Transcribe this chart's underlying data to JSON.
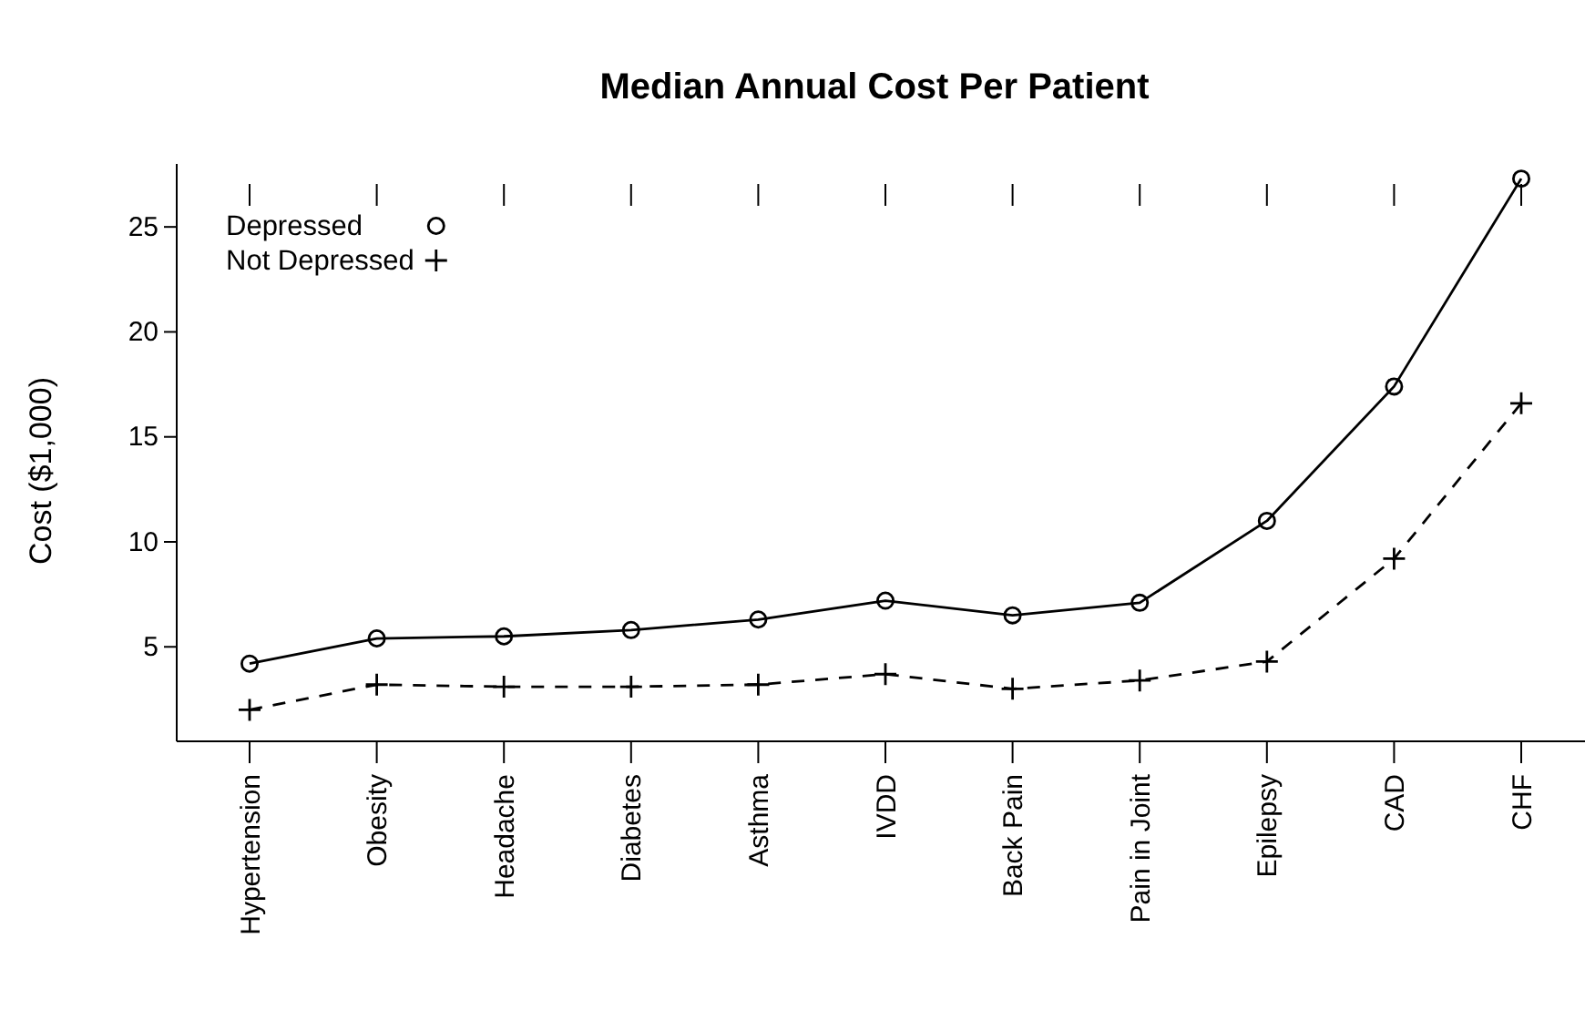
{
  "chart_data": {
    "type": "line",
    "title": "Median Annual Cost Per Patient",
    "ylabel": "Cost ($1,000)",
    "categories": [
      "Hypertension",
      "Obesity",
      "Headache",
      "Diabetes",
      "Asthma",
      "IVDD",
      "Back Pain",
      "Pain in Joint",
      "Epilepsy",
      "CAD",
      "CHF"
    ],
    "series": [
      {
        "name": "Depressed",
        "color": "#000000",
        "marker": "circle",
        "line_style": "solid",
        "values": [
          4.2,
          5.4,
          5.5,
          5.8,
          6.3,
          7.2,
          6.5,
          7.1,
          11.0,
          17.4,
          27.3
        ]
      },
      {
        "name": "Not Depressed",
        "color": "#000000",
        "marker": "cross",
        "line_style": "dashed",
        "values": [
          2.0,
          3.2,
          3.1,
          3.1,
          3.2,
          3.7,
          3.0,
          3.4,
          4.3,
          9.2,
          16.6
        ]
      }
    ],
    "ylim": [
      0.5,
      28
    ],
    "yticks": [
      5,
      10,
      15,
      20,
      25
    ],
    "grid": false,
    "legend": "top left"
  }
}
